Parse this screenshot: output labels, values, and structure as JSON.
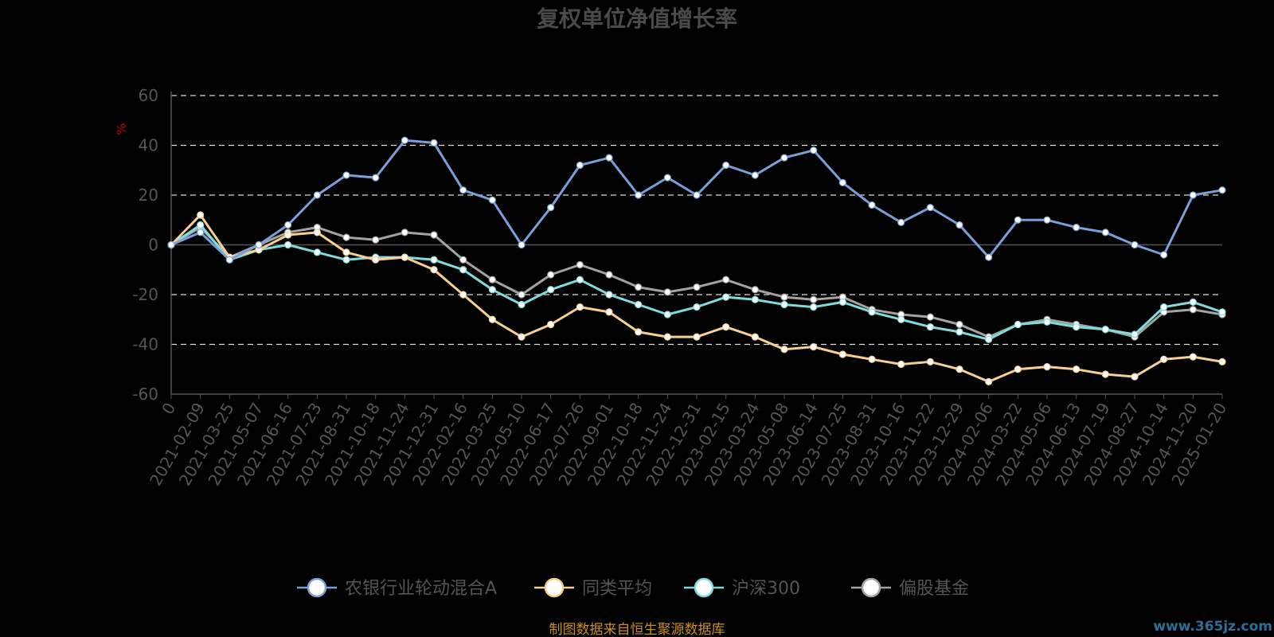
{
  "chart_data": {
    "type": "line",
    "title": "复权单位净值增长率",
    "ylabel": "%",
    "ylim": [
      -60,
      60
    ],
    "yticks": [
      60,
      40,
      20,
      0,
      -20,
      -40,
      -60
    ],
    "grid": true,
    "legend_position": "bottom",
    "categories": [
      "0",
      "2021-02-09",
      "2021-03-25",
      "2021-05-07",
      "2021-06-16",
      "2021-07-23",
      "2021-08-31",
      "2021-10-18",
      "2021-11-24",
      "2021-12-31",
      "2022-02-16",
      "2022-03-25",
      "2022-05-10",
      "2022-06-17",
      "2022-07-26",
      "2022-09-01",
      "2022-10-18",
      "2022-11-24",
      "2022-12-31",
      "2023-02-15",
      "2023-03-24",
      "2023-05-08",
      "2023-06-14",
      "2023-07-25",
      "2023-08-31",
      "2023-10-16",
      "2023-11-22",
      "2023-12-29",
      "2024-02-06",
      "2024-03-22",
      "2024-05-06",
      "2024-06-13",
      "2024-07-19",
      "2024-08-27",
      "2024-10-14",
      "2024-11-20",
      "2025-01-20"
    ],
    "series": [
      {
        "name": "农银行业轮动混合A",
        "color": "#7b9fd8",
        "values": [
          0,
          5,
          -6,
          0,
          8,
          20,
          28,
          27,
          42,
          41,
          22,
          18,
          0,
          15,
          32,
          35,
          20,
          27,
          20,
          32,
          28,
          35,
          38,
          25,
          16,
          9,
          15,
          8,
          -5,
          10,
          10,
          7,
          5,
          0,
          -4,
          20,
          22
        ]
      },
      {
        "name": "同类平均",
        "color": "#f9cf8f",
        "values": [
          0,
          12,
          -5,
          -2,
          4,
          5,
          -3,
          -6,
          -5,
          -10,
          -20,
          -30,
          -37,
          -32,
          -25,
          -27,
          -35,
          -37,
          -37,
          -33,
          -37,
          -42,
          -41,
          -44,
          -46,
          -48,
          -47,
          -50,
          -55,
          -50,
          -49,
          -50,
          -52,
          -53,
          -46,
          -45,
          -47
        ]
      },
      {
        "name": "沪深300",
        "color": "#7fdcdc",
        "values": [
          0,
          8,
          -6,
          -2,
          0,
          -3,
          -6,
          -5,
          -5,
          -6,
          -10,
          -18,
          -24,
          -18,
          -14,
          -20,
          -24,
          -28,
          -25,
          -21,
          -22,
          -24,
          -25,
          -23,
          -27,
          -30,
          -33,
          -35,
          -38,
          -32,
          -31,
          -33,
          -34,
          -36,
          -25,
          -23,
          -27
        ]
      },
      {
        "name": "偏股基金",
        "color": "#a3a3a3",
        "values": [
          0,
          7,
          -5,
          0,
          5,
          7,
          3,
          2,
          5,
          4,
          -6,
          -14,
          -20,
          -12,
          -8,
          -12,
          -17,
          -19,
          -17,
          -14,
          -18,
          -21,
          -22,
          -21,
          -26,
          -28,
          -29,
          -32,
          -37,
          -32,
          -30,
          -32,
          -34,
          -37,
          -27,
          -26,
          -28
        ]
      }
    ]
  },
  "source": "制图数据来自恒生聚源数据库",
  "watermark": "www.365jz.com"
}
